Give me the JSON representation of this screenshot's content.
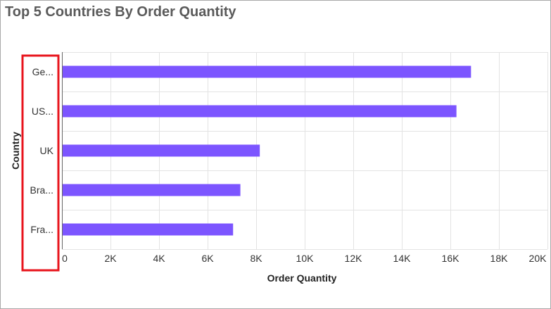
{
  "chart_data": {
    "type": "bar",
    "orientation": "horizontal",
    "title": "Top 5 Countries By Order Quantity",
    "xlabel": "Order Quantity",
    "ylabel": "Country",
    "categories": [
      "Ge...",
      "US...",
      "UK",
      "Bra...",
      "Fra..."
    ],
    "values": [
      16850,
      16250,
      8150,
      7350,
      7050
    ],
    "xlim": [
      0,
      20000
    ],
    "x_ticks": [
      "0",
      "2K",
      "4K",
      "6K",
      "8K",
      "10K",
      "12K",
      "14K",
      "16K",
      "18K",
      "20K"
    ],
    "grid": true,
    "legend": "none",
    "bar_color": "#7c55ff",
    "highlight_color": "#e8141c"
  }
}
